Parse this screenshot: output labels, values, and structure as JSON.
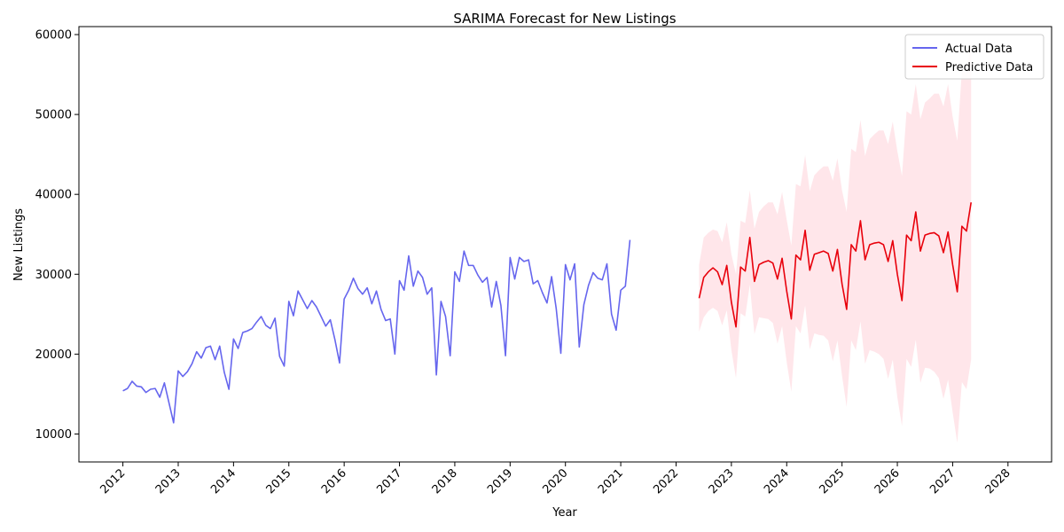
{
  "chart_data": {
    "type": "line",
    "title": "SARIMA Forecast for New Listings",
    "xlabel": "Year",
    "ylabel": "New Listings",
    "x_ticks": [
      "2012",
      "2013",
      "2014",
      "2015",
      "2016",
      "2017",
      "2018",
      "2019",
      "2020",
      "2021",
      "2022",
      "2023",
      "2024",
      "2025",
      "2026",
      "2027",
      "2028"
    ],
    "y_ticks": [
      10000,
      20000,
      30000,
      40000,
      50000,
      60000
    ],
    "xlim": [
      "2011-03-15",
      "2028-10-15"
    ],
    "ylim": [
      6500,
      61000
    ],
    "grid": false,
    "legend": "top-right",
    "colors": {
      "actual": "#6666ee",
      "predictive": "#e8000b",
      "confidence": "#ffc0cb"
    },
    "series": [
      {
        "name": "Actual Data",
        "start": "2012-01",
        "frequency": "monthly",
        "values": [
          15400,
          15700,
          16600,
          16000,
          15900,
          15200,
          15600,
          15700,
          14600,
          16400,
          13900,
          11400,
          17900,
          17200,
          17800,
          18800,
          20300,
          19500,
          20800,
          21000,
          19300,
          21000,
          17700,
          15600,
          21900,
          20700,
          22700,
          22900,
          23200,
          24000,
          24700,
          23600,
          23200,
          24500,
          19700,
          18500,
          26600,
          24800,
          27900,
          26800,
          25700,
          26700,
          25900,
          24700,
          23500,
          24300,
          21800,
          18900,
          26900,
          28000,
          29500,
          28200,
          27500,
          28300,
          26300,
          27900,
          25600,
          24200,
          24400,
          20000,
          29200,
          28000,
          32300,
          28500,
          30400,
          29600,
          27500,
          28300,
          17400,
          26600,
          24700,
          19800,
          30300,
          29100,
          32900,
          31100,
          31100,
          29900,
          29000,
          29600,
          25900,
          29100,
          26100,
          19800,
          32100,
          29400,
          32100,
          31600,
          31800,
          28800,
          29200,
          27700,
          26400,
          29700,
          25700,
          20100,
          31200,
          29300,
          31300,
          20900,
          26200,
          28600,
          30200,
          29500,
          29300,
          31300,
          25000,
          23000,
          28000,
          28500,
          34300
        ]
      },
      {
        "name": "Predictive Data",
        "start": "2022-06",
        "frequency": "monthly",
        "values": [
          27000,
          29600,
          30300,
          30800,
          30300,
          28700,
          31100,
          26500,
          23400,
          30900,
          30400,
          34600,
          29100,
          31200,
          31500,
          31700,
          31400,
          29400,
          32000,
          27900,
          24400,
          32400,
          31800,
          35500,
          30500,
          32500,
          32700,
          32900,
          32600,
          30400,
          33100,
          28800,
          25600,
          33700,
          32900,
          36700,
          31800,
          33700,
          33900,
          34000,
          33700,
          31600,
          34200,
          30000,
          26700,
          34900,
          34200,
          37800,
          32900,
          34900,
          35100,
          35200,
          34800,
          32700,
          35300,
          31200,
          27800,
          36000,
          35400,
          39000
        ]
      },
      {
        "name": "confidence-band",
        "start": "2022-06",
        "frequency": "monthly",
        "upper": [
          31200,
          34600,
          35200,
          35600,
          35400,
          34000,
          36500,
          32500,
          30000,
          36700,
          36400,
          40500,
          35700,
          37800,
          38500,
          39000,
          39000,
          37500,
          40300,
          36800,
          33600,
          41300,
          41000,
          44900,
          40400,
          42400,
          43000,
          43500,
          43500,
          41700,
          44500,
          40500,
          37800,
          45700,
          45300,
          49300,
          44800,
          46900,
          47500,
          48000,
          48000,
          46300,
          49100,
          45400,
          42300,
          50400,
          50000,
          53800,
          49400,
          51500,
          52000,
          52600,
          52600,
          51000,
          53800,
          49700,
          46700,
          55500,
          55200,
          59300
        ],
        "lower": [
          22800,
          24600,
          25400,
          25800,
          25400,
          23600,
          25500,
          20500,
          17000,
          25100,
          24700,
          28700,
          22500,
          24600,
          24500,
          24400,
          23900,
          21300,
          23500,
          19000,
          15300,
          23500,
          22600,
          26100,
          20600,
          22600,
          22400,
          22300,
          21700,
          19100,
          21700,
          17300,
          13400,
          21700,
          20500,
          24100,
          18800,
          20500,
          20300,
          20000,
          19400,
          16900,
          19300,
          14600,
          11000,
          19400,
          18400,
          21800,
          16400,
          18300,
          18200,
          17800,
          17000,
          14400,
          16800,
          12700,
          8900,
          16500,
          15600,
          19300
        ]
      }
    ]
  }
}
